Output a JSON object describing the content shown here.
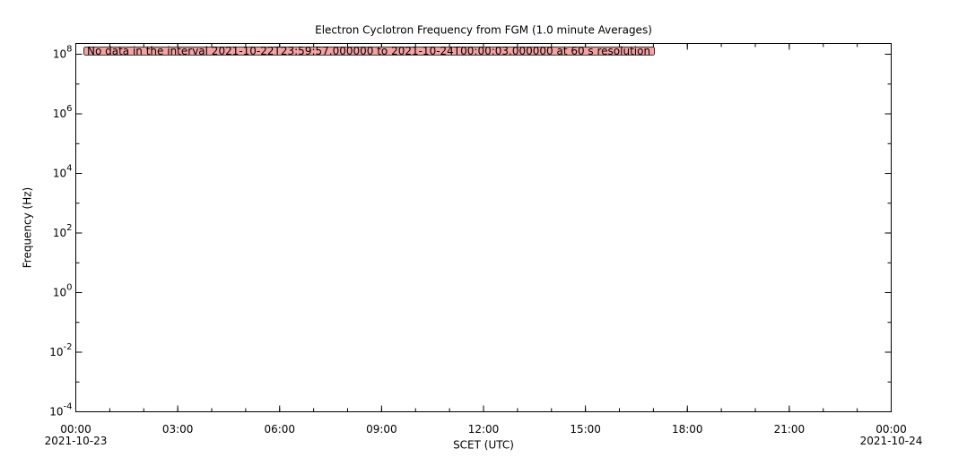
{
  "chart_data": {
    "type": "line",
    "title": "Electron Cyclotron Frequency from FGM (1.0 minute Averages)",
    "x_label": "SCET (UTC)",
    "y_label": "Frequency (Hz)",
    "annotation": "No data in the interval 2021-10-22T23:59:57.000000 to 2021-10-24T00:00:03.000000 at 60 s resolution",
    "annotation_color": "#f4a3a3",
    "x": [],
    "series": [],
    "xlim": [
      "2021-10-23 00:00",
      "2021-10-24 00:00"
    ],
    "xticks": [
      {
        "value": "2021-10-23 00:00",
        "label": "00:00"
      },
      {
        "value": "2021-10-23 03:00",
        "label": "03:00"
      },
      {
        "value": "2021-10-23 06:00",
        "label": "06:00"
      },
      {
        "value": "2021-10-23 09:00",
        "label": "09:00"
      },
      {
        "value": "2021-10-23 12:00",
        "label": "12:00"
      },
      {
        "value": "2021-10-23 15:00",
        "label": "15:00"
      },
      {
        "value": "2021-10-23 18:00",
        "label": "18:00"
      },
      {
        "value": "2021-10-23 21:00",
        "label": "21:00"
      },
      {
        "value": "2021-10-24 00:00",
        "label": "00:00"
      }
    ],
    "x_date_labels": [
      {
        "value": "2021-10-23 00:00",
        "label": "2021-10-23"
      },
      {
        "value": "2021-10-24 00:00",
        "label": "2021-10-24"
      }
    ],
    "xminor_step_hours": 1,
    "ylog": true,
    "ylim": [
      0.0001,
      230000000
    ],
    "yticks": [
      {
        "value": 0.0001,
        "label": "10^-4"
      },
      {
        "value": 0.01,
        "label": "10^-2"
      },
      {
        "value": 1,
        "label": "10^0"
      },
      {
        "value": 100,
        "label": "10^2"
      },
      {
        "value": 10000,
        "label": "10^4"
      },
      {
        "value": 1000000,
        "label": "10^6"
      },
      {
        "value": 100000000,
        "label": "10^8"
      }
    ],
    "yminor": [
      0.001,
      0.1,
      10,
      1000,
      100000,
      10000000
    ],
    "grid": false
  }
}
